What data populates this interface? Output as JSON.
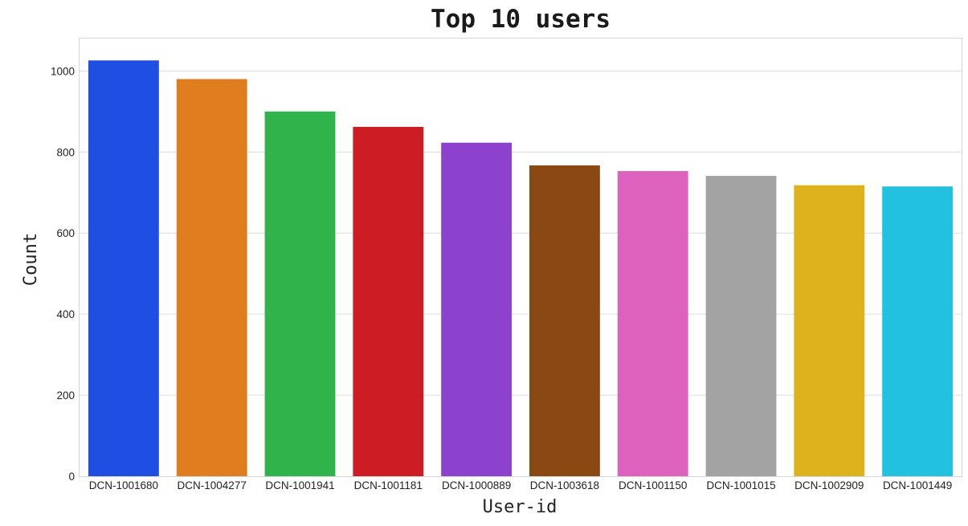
{
  "chart_data": {
    "type": "bar",
    "title": "Top 10 users",
    "xlabel": "User-id",
    "ylabel": "Count",
    "categories": [
      "DCN-1001680",
      "DCN-1004277",
      "DCN-1001941",
      "DCN-1001181",
      "DCN-1000889",
      "DCN-1003618",
      "DCN-1001150",
      "DCN-1001015",
      "DCN-1002909",
      "DCN-1001449"
    ],
    "values": [
      1026,
      980,
      900,
      862,
      823,
      767,
      753,
      741,
      718,
      715
    ],
    "colors": [
      "#1f4ee3",
      "#e07d1e",
      "#30b34a",
      "#cc1d25",
      "#8c42cc",
      "#8a4813",
      "#dd62bd",
      "#a3a3a3",
      "#deb21d",
      "#22c1e0"
    ],
    "ylim": [
      0,
      1080
    ],
    "yticks": [
      0,
      200,
      400,
      600,
      800,
      1000
    ],
    "grid": true,
    "legend": "none"
  }
}
